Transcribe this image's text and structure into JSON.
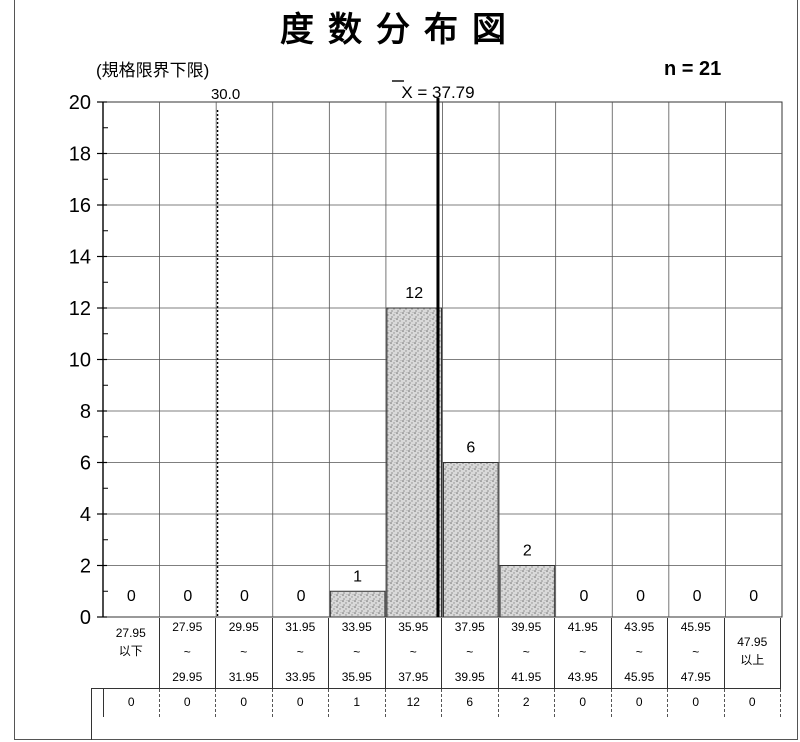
{
  "header": {
    "title": "度数分布図",
    "spec_note": "(規格限界下限)",
    "n_label": "n = 21"
  },
  "chart_data": {
    "type": "bar",
    "title": "度数分布図",
    "ylim": [
      0,
      20
    ],
    "yticks": [
      "0",
      "2",
      "4",
      "6",
      "8",
      "10",
      "12",
      "14",
      "16",
      "18",
      "20"
    ],
    "grid": true,
    "categories": [
      {
        "top": "27.95",
        "mid": "以下",
        "bottom": ""
      },
      {
        "top": "27.95",
        "mid": "~",
        "bottom": "29.95"
      },
      {
        "top": "29.95",
        "mid": "~",
        "bottom": "31.95"
      },
      {
        "top": "31.95",
        "mid": "~",
        "bottom": "33.95"
      },
      {
        "top": "33.95",
        "mid": "~",
        "bottom": "35.95"
      },
      {
        "top": "35.95",
        "mid": "~",
        "bottom": "37.95"
      },
      {
        "top": "37.95",
        "mid": "~",
        "bottom": "39.95"
      },
      {
        "top": "39.95",
        "mid": "~",
        "bottom": "41.95"
      },
      {
        "top": "41.95",
        "mid": "~",
        "bottom": "43.95"
      },
      {
        "top": "43.95",
        "mid": "~",
        "bottom": "45.95"
      },
      {
        "top": "45.95",
        "mid": "~",
        "bottom": "47.95"
      },
      {
        "top": "47.95",
        "mid": "以上",
        "bottom": ""
      }
    ],
    "values": [
      0,
      0,
      0,
      0,
      1,
      12,
      6,
      2,
      0,
      0,
      0,
      0
    ],
    "value_labels": [
      "0",
      "0",
      "0",
      "0",
      "1",
      "12",
      "6",
      "2",
      "0",
      "0",
      "0",
      "0"
    ],
    "lower_limit": {
      "value": 30.0,
      "label": "30.0"
    },
    "mean": {
      "value": 37.79,
      "label": "X = 37.79"
    },
    "bar_color": "#c8c8c8",
    "pattern_color": "#7a7a7a"
  }
}
